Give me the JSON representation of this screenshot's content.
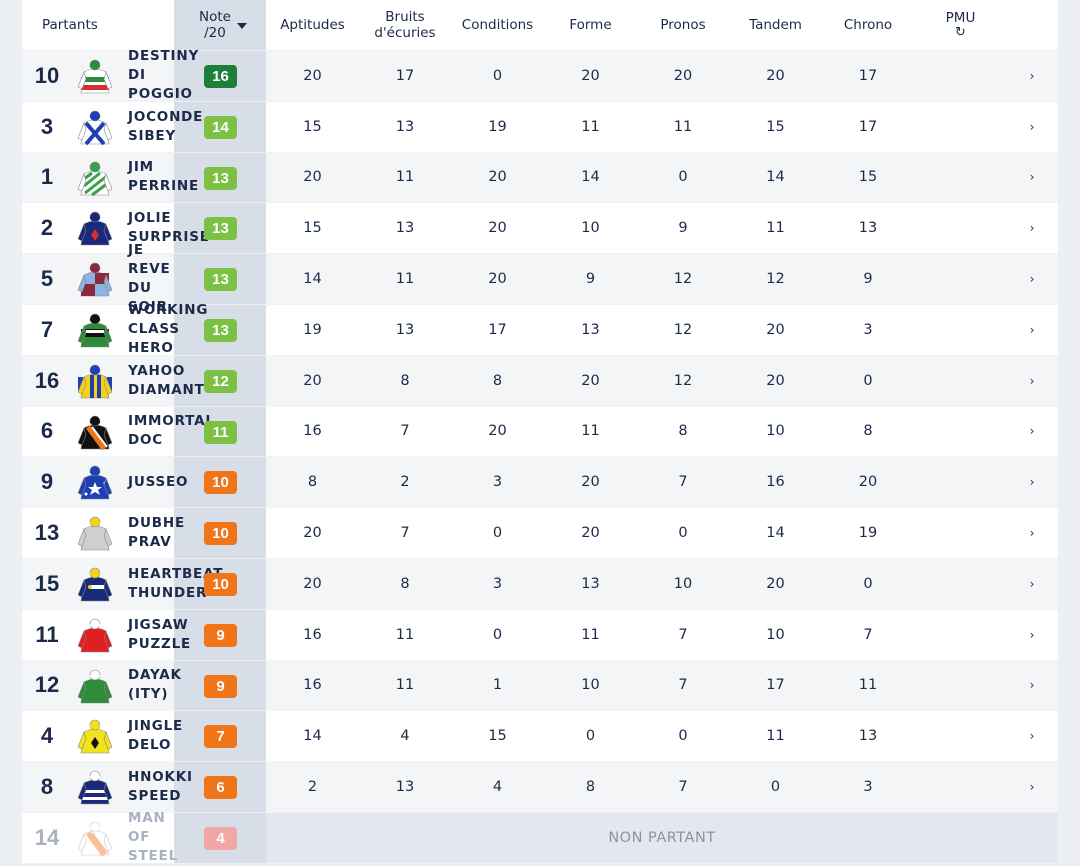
{
  "headers": {
    "partants": "Partants",
    "note_line1": "Note",
    "note_line2": "/20",
    "aptitudes": "Aptitudes",
    "bruits_line1": "Bruits",
    "bruits_line2": "d'écuries",
    "conditions": "Conditions",
    "forme": "Forme",
    "pronos": "Pronos",
    "tandem": "Tandem",
    "chrono": "Chrono",
    "pmu": "PMU",
    "pmu_icon": "refresh-icon"
  },
  "colors": {
    "note_dark_green": "#1e7f3a",
    "note_green": "#7cc143",
    "note_orange": "#f07418",
    "note_pink": "#f3a6a6"
  },
  "rows": [
    {
      "num": "10",
      "name": "DESTINY\nDI\nPOGGIO",
      "note": "16",
      "tier": "dark",
      "scores": [
        "20",
        "17",
        "0",
        "20",
        "20",
        "20",
        "17"
      ],
      "silk": {
        "body": "#ffffff",
        "stripe": "#2e8b3a",
        "accent": "#d32f2f",
        "cap": "#2e8b3a",
        "pattern": "bands"
      }
    },
    {
      "num": "3",
      "name": "JOCONDE\nSIBEY",
      "note": "14",
      "tier": "green",
      "scores": [
        "15",
        "13",
        "19",
        "11",
        "11",
        "15",
        "17"
      ],
      "silk": {
        "body": "#ffffff",
        "stripe": "#1f3fb4",
        "accent": "#1f3fb4",
        "cap": "#1f3fb4",
        "pattern": "cross"
      }
    },
    {
      "num": "1",
      "name": "JIM\nPERRINE",
      "note": "13",
      "tier": "green",
      "scores": [
        "20",
        "11",
        "20",
        "14",
        "0",
        "14",
        "15"
      ],
      "silk": {
        "body": "#ffffff",
        "stripe": "#3aa04a",
        "accent": "#3aa04a",
        "cap": "#3aa04a",
        "pattern": "diag"
      }
    },
    {
      "num": "2",
      "name": "JOLIE\nSURPRISE",
      "note": "13",
      "tier": "green",
      "scores": [
        "15",
        "13",
        "20",
        "10",
        "9",
        "11",
        "13"
      ],
      "silk": {
        "body": "#1a2a7a",
        "stripe": "#1a2a7a",
        "accent": "#d32f2f",
        "cap": "#1a2a7a",
        "pattern": "diamond"
      }
    },
    {
      "num": "5",
      "name": "JE\nREVE\nDU\nSOIR",
      "note": "13",
      "tier": "green",
      "scores": [
        "14",
        "11",
        "20",
        "9",
        "12",
        "12",
        "9"
      ],
      "silk": {
        "body": "#8fb3e0",
        "stripe": "#8a2a3a",
        "accent": "#8a2a3a",
        "cap": "#8a2a3a",
        "pattern": "quarters"
      }
    },
    {
      "num": "7",
      "name": "WORKING\nCLASS\nHERO",
      "note": "13",
      "tier": "green",
      "scores": [
        "19",
        "13",
        "17",
        "13",
        "12",
        "20",
        "3"
      ],
      "silk": {
        "body": "#2e8b3a",
        "stripe": "#111111",
        "accent": "#ffffff",
        "cap": "#111111",
        "pattern": "hoop"
      }
    },
    {
      "num": "16",
      "name": "YAHOO\nDIAMANT",
      "note": "12",
      "tier": "green",
      "scores": [
        "20",
        "8",
        "8",
        "20",
        "12",
        "20",
        "0"
      ],
      "silk": {
        "body": "#f2d21a",
        "stripe": "#1f3fb4",
        "accent": "#1f3fb4",
        "cap": "#1f3fb4",
        "pattern": "vstripes"
      }
    },
    {
      "num": "6",
      "name": "IMMORTAL\nDOC",
      "note": "11",
      "tier": "green",
      "scores": [
        "16",
        "7",
        "20",
        "11",
        "8",
        "10",
        "8"
      ],
      "silk": {
        "body": "#111111",
        "stripe": "#f07418",
        "accent": "#ffffff",
        "cap": "#111111",
        "pattern": "sash"
      }
    },
    {
      "num": "9",
      "name": "JUSSEO",
      "note": "10",
      "tier": "orange",
      "scores": [
        "8",
        "2",
        "3",
        "20",
        "7",
        "16",
        "20"
      ],
      "silk": {
        "body": "#1f3fb4",
        "stripe": "#ffffff",
        "accent": "#ffffff",
        "cap": "#1f3fb4",
        "pattern": "star"
      }
    },
    {
      "num": "13",
      "name": "DUBHE\nPRAV",
      "note": "10",
      "tier": "orange",
      "scores": [
        "20",
        "7",
        "0",
        "20",
        "0",
        "14",
        "19"
      ],
      "silk": {
        "body": "#cfcfcf",
        "stripe": "#cfcfcf",
        "accent": "#f2d21a",
        "cap": "#f2d21a",
        "pattern": "plain"
      }
    },
    {
      "num": "15",
      "name": "HEARTBEAT\nTHUNDER",
      "note": "10",
      "tier": "orange",
      "scores": [
        "20",
        "8",
        "3",
        "13",
        "10",
        "20",
        "0"
      ],
      "silk": {
        "body": "#1a2a7a",
        "stripe": "#ffffff",
        "accent": "#f2d21a",
        "cap": "#f2d21a",
        "pattern": "logo"
      }
    },
    {
      "num": "11",
      "name": "JIGSAW\nPUZZLE",
      "note": "9",
      "tier": "orange",
      "scores": [
        "16",
        "11",
        "0",
        "11",
        "7",
        "10",
        "7"
      ],
      "silk": {
        "body": "#e02020",
        "stripe": "#e02020",
        "accent": "#e02020",
        "cap": "#ffffff",
        "pattern": "plain"
      }
    },
    {
      "num": "12",
      "name": "DAYAK\n(ITY)",
      "note": "9",
      "tier": "orange",
      "scores": [
        "16",
        "11",
        "1",
        "10",
        "7",
        "17",
        "11"
      ],
      "silk": {
        "body": "#2e8b3a",
        "stripe": "#2e8b3a",
        "accent": "#2e8b3a",
        "cap": "#ffffff",
        "pattern": "plain"
      }
    },
    {
      "num": "4",
      "name": "JINGLE\nDELO",
      "note": "7",
      "tier": "orange",
      "scores": [
        "14",
        "4",
        "15",
        "0",
        "0",
        "11",
        "13"
      ],
      "silk": {
        "body": "#f2e21a",
        "stripe": "#111111",
        "accent": "#111111",
        "cap": "#f2e21a",
        "pattern": "diamond"
      }
    },
    {
      "num": "8",
      "name": "HNOKKI\nSPEED",
      "note": "6",
      "tier": "orange",
      "scores": [
        "2",
        "13",
        "4",
        "8",
        "7",
        "0",
        "3"
      ],
      "silk": {
        "body": "#1a2a7a",
        "stripe": "#ffffff",
        "accent": "#ffffff",
        "cap": "#ffffff",
        "pattern": "hoops2"
      }
    },
    {
      "num": "14",
      "name": "MAN\nOF\nSTEEL",
      "note": "4",
      "tier": "pink",
      "nonpartant": "NON PARTANT",
      "silk": {
        "body": "#ffffff",
        "stripe": "#f07418",
        "accent": "#f07418",
        "cap": "#ffffff",
        "pattern": "sash"
      }
    }
  ]
}
